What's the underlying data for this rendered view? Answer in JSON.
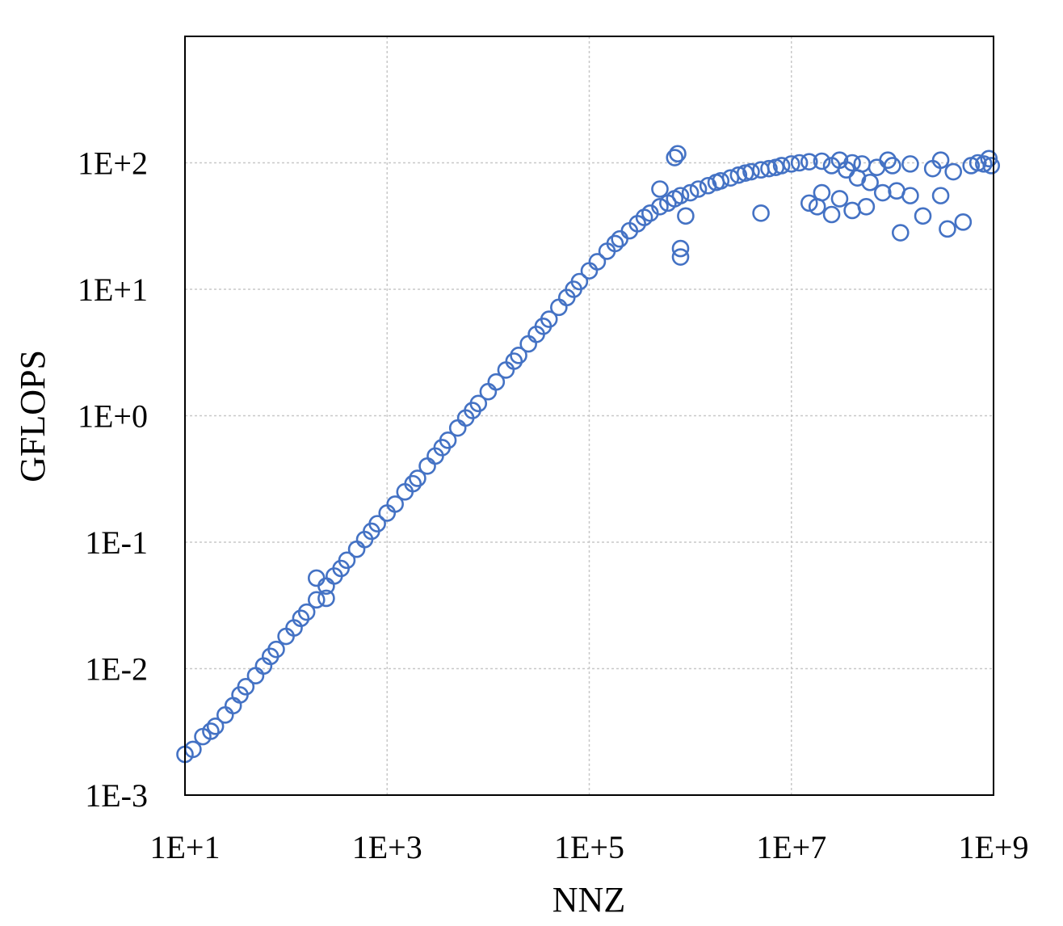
{
  "chart_data": {
    "type": "scatter",
    "title": "",
    "xlabel": "NNZ",
    "ylabel": "GFLOPS",
    "xscale": "log",
    "yscale": "log",
    "xlim": [
      10,
      1000000000
    ],
    "ylim": [
      0.001,
      1000
    ],
    "xticks": [
      10,
      1000,
      100000,
      10000000,
      1000000000
    ],
    "xtick_labels": [
      "1E+1",
      "1E+3",
      "1E+5",
      "1E+7",
      "1E+9"
    ],
    "yticks": [
      0.001,
      0.01,
      0.1,
      1,
      10,
      100
    ],
    "ytick_labels": [
      "1E-3",
      "1E-2",
      "1E-1",
      "1E+0",
      "1E+1",
      "1E+2"
    ],
    "grid": true,
    "legend": "none",
    "marker": "open-circle",
    "color": "#4472C4",
    "series": [
      {
        "points": [
          [
            10,
            0.0021
          ],
          [
            12,
            0.0023
          ],
          [
            15,
            0.0029
          ],
          [
            18,
            0.0032
          ],
          [
            20,
            0.0035
          ],
          [
            25,
            0.0043
          ],
          [
            30,
            0.0051
          ],
          [
            35,
            0.0062
          ],
          [
            40,
            0.0072
          ],
          [
            50,
            0.0088
          ],
          [
            60,
            0.0105
          ],
          [
            70,
            0.0125
          ],
          [
            80,
            0.0142
          ],
          [
            100,
            0.018
          ],
          [
            120,
            0.021
          ],
          [
            140,
            0.025
          ],
          [
            160,
            0.028
          ],
          [
            200,
            0.035
          ],
          [
            200,
            0.052
          ],
          [
            250,
            0.036
          ],
          [
            250,
            0.045
          ],
          [
            300,
            0.054
          ],
          [
            350,
            0.062
          ],
          [
            400,
            0.072
          ],
          [
            500,
            0.088
          ],
          [
            600,
            0.105
          ],
          [
            700,
            0.122
          ],
          [
            800,
            0.14
          ],
          [
            1000,
            0.17
          ],
          [
            1200,
            0.2
          ],
          [
            1500,
            0.25
          ],
          [
            1800,
            0.29
          ],
          [
            2000,
            0.32
          ],
          [
            2500,
            0.4
          ],
          [
            3000,
            0.48
          ],
          [
            3500,
            0.56
          ],
          [
            4000,
            0.64
          ],
          [
            5000,
            0.8
          ],
          [
            6000,
            0.96
          ],
          [
            7000,
            1.1
          ],
          [
            8000,
            1.25
          ],
          [
            10000,
            1.55
          ],
          [
            12000,
            1.85
          ],
          [
            15000,
            2.3
          ],
          [
            18000,
            2.7
          ],
          [
            20000,
            3.0
          ],
          [
            25000,
            3.7
          ],
          [
            30000,
            4.4
          ],
          [
            35000,
            5.1
          ],
          [
            40000,
            5.8
          ],
          [
            50000,
            7.2
          ],
          [
            60000,
            8.6
          ],
          [
            70000,
            10
          ],
          [
            80000,
            11.5
          ],
          [
            100000,
            14
          ],
          [
            120000,
            16.5
          ],
          [
            150000,
            20
          ],
          [
            180000,
            23
          ],
          [
            200000,
            25
          ],
          [
            250000,
            29
          ],
          [
            300000,
            33
          ],
          [
            350000,
            37
          ],
          [
            400000,
            40
          ],
          [
            500000,
            45
          ],
          [
            500000,
            62
          ],
          [
            600000,
            48
          ],
          [
            700000,
            52
          ],
          [
            700000,
            110
          ],
          [
            750000,
            118
          ],
          [
            800000,
            55
          ],
          [
            800000,
            21
          ],
          [
            900000,
            38
          ],
          [
            800000,
            18
          ],
          [
            1000000,
            58
          ],
          [
            1200000,
            62
          ],
          [
            1500000,
            66
          ],
          [
            1800000,
            70
          ],
          [
            2000000,
            72
          ],
          [
            2500000,
            76
          ],
          [
            3000000,
            80
          ],
          [
            3500000,
            83
          ],
          [
            4000000,
            85
          ],
          [
            5000000,
            88
          ],
          [
            5000000,
            40
          ],
          [
            6000000,
            90
          ],
          [
            7000000,
            92
          ],
          [
            8000000,
            95
          ],
          [
            10000000,
            98
          ],
          [
            12000000,
            100
          ],
          [
            15000000,
            102
          ],
          [
            15000000,
            48
          ],
          [
            18000000,
            45
          ],
          [
            20000000,
            103
          ],
          [
            20000000,
            58
          ],
          [
            25000000,
            95
          ],
          [
            25000000,
            39
          ],
          [
            30000000,
            105
          ],
          [
            30000000,
            52
          ],
          [
            35000000,
            88
          ],
          [
            40000000,
            100
          ],
          [
            40000000,
            42
          ],
          [
            45000000,
            76
          ],
          [
            50000000,
            98
          ],
          [
            55000000,
            45
          ],
          [
            60000000,
            70
          ],
          [
            70000000,
            92
          ],
          [
            80000000,
            58
          ],
          [
            90000000,
            105
          ],
          [
            100000000,
            95
          ],
          [
            110000000,
            60
          ],
          [
            120000000,
            28
          ],
          [
            150000000,
            98
          ],
          [
            150000000,
            55
          ],
          [
            200000000,
            38
          ],
          [
            250000000,
            90
          ],
          [
            300000000,
            55
          ],
          [
            300000000,
            105
          ],
          [
            350000000,
            30
          ],
          [
            400000000,
            85
          ],
          [
            500000000,
            34
          ],
          [
            600000000,
            95
          ],
          [
            700000000,
            100
          ],
          [
            800000000,
            98
          ],
          [
            900000000,
            108
          ],
          [
            950000000,
            95
          ]
        ]
      }
    ]
  }
}
